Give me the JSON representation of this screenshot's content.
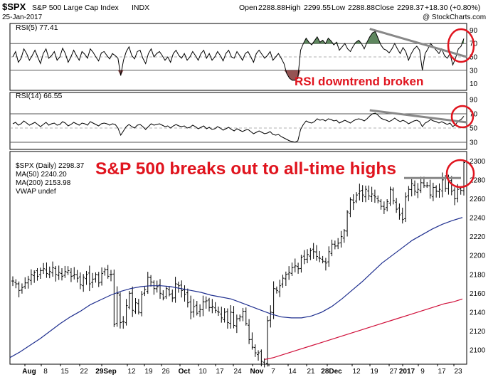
{
  "header": {
    "symbol": "$SPX",
    "name": "S&P 500 Large Cap Index",
    "exchange": "INDX",
    "date": "25-Jan-2017",
    "open_label": "Open",
    "open": "2288.88",
    "high_label": "High",
    "high": "2299.55",
    "low_label": "Low",
    "low": "2288.88",
    "close_label": "Close",
    "close": "2298.37",
    "change": "+18.30 (+0.80%)",
    "watermark": "@ StockCharts.com"
  },
  "annotations": {
    "rsi_note": "RSI downtrend broken",
    "price_note": "S&P 500 breaks out to all-time highs"
  },
  "colors": {
    "price_bars": "#000000",
    "ma50": "#1f2f8f",
    "ma200": "#d0103a",
    "overbought_fill": "#4e7a4e",
    "oversold_fill": "#8a4040",
    "annotation": "#e0141e",
    "trendline": "#888888"
  },
  "chart_data": [
    {
      "type": "line",
      "title": "RSI(5) 77.41",
      "ylim": [
        0,
        100
      ],
      "y_ticks": [
        10,
        30,
        50,
        70,
        90
      ],
      "reference_lines": [
        30,
        70
      ],
      "midline": 50,
      "series": [
        {
          "name": "RSI(5)",
          "values": [
            50,
            58,
            42,
            48,
            62,
            55,
            45,
            52,
            60,
            50,
            40,
            55,
            62,
            48,
            52,
            58,
            45,
            50,
            63,
            55,
            42,
            50,
            60,
            52,
            45,
            58,
            54,
            48,
            62,
            57,
            50,
            44,
            56,
            58,
            52,
            47,
            55,
            52,
            48,
            22,
            45,
            58,
            65,
            52,
            47,
            58,
            60,
            48,
            40,
            55,
            62,
            50,
            55,
            58,
            52,
            45,
            50,
            42,
            55,
            60,
            52,
            48,
            55,
            45,
            50,
            58,
            52,
            45,
            55,
            60,
            48,
            55,
            45,
            50,
            58,
            52,
            44,
            55,
            60,
            50,
            48,
            58,
            52,
            45,
            55,
            58,
            50,
            42,
            55,
            60,
            54,
            48,
            52,
            58,
            45,
            50,
            55,
            48,
            40,
            25,
            18,
            15,
            15,
            18,
            60,
            70,
            78,
            72,
            68,
            74,
            80,
            72,
            75,
            70,
            78,
            74,
            68,
            72,
            60,
            65,
            70,
            62,
            58,
            66,
            72,
            75,
            70,
            62,
            72,
            80,
            86,
            88,
            78,
            68,
            62,
            60,
            56,
            62,
            70,
            62,
            55,
            64,
            58,
            45,
            55,
            62,
            66,
            60,
            30,
            55,
            62,
            70,
            65,
            60,
            55,
            62,
            52,
            48,
            55,
            38,
            48,
            62,
            66,
            77.41
          ]
        }
      ],
      "ylabel": ""
    },
    {
      "type": "line",
      "title": "RSI(14) 66.55",
      "ylim": [
        20,
        100
      ],
      "y_ticks": [
        30,
        50,
        70,
        90
      ],
      "reference_lines": [
        30,
        70
      ],
      "midline": 50,
      "series": [
        {
          "name": "RSI(14)",
          "values": [
            56,
            58,
            54,
            56,
            60,
            57,
            54,
            56,
            58,
            55,
            52,
            55,
            58,
            54,
            56,
            57,
            54,
            55,
            59,
            57,
            53,
            55,
            58,
            56,
            54,
            57,
            56,
            54,
            59,
            57,
            55,
            53,
            56,
            57,
            56,
            54,
            56,
            55,
            50,
            40,
            46,
            52,
            55,
            52,
            50,
            54,
            55,
            52,
            48,
            52,
            56,
            54,
            55,
            56,
            54,
            52,
            53,
            50,
            53,
            55,
            53,
            52,
            53,
            50,
            51,
            54,
            52,
            49,
            51,
            53,
            49,
            51,
            48,
            49,
            52,
            50,
            47,
            49,
            51,
            48,
            46,
            49,
            47,
            45,
            47,
            48,
            45,
            42,
            44,
            46,
            44,
            42,
            43,
            45,
            41,
            40,
            41,
            38,
            36,
            34,
            32,
            31,
            30,
            32,
            48,
            55,
            60,
            58,
            57,
            59,
            63,
            61,
            62,
            60,
            63,
            62,
            60,
            61,
            57,
            59,
            61,
            59,
            57,
            60,
            62,
            63,
            62,
            60,
            63,
            67,
            70,
            71,
            68,
            64,
            62,
            61,
            59,
            61,
            64,
            61,
            59,
            61,
            59,
            56,
            58,
            60,
            61,
            59,
            52,
            57,
            59,
            62,
            60,
            59,
            57,
            59,
            57,
            55,
            57,
            52,
            55,
            60,
            62,
            66.55
          ]
        }
      ],
      "ylabel": ""
    },
    {
      "type": "ohlc",
      "title": "$SPX (Daily) 2298.37",
      "ylim": [
        2085,
        2310
      ],
      "y_ticks": [
        2100,
        2120,
        2140,
        2160,
        2180,
        2200,
        2220,
        2240,
        2260,
        2280,
        2300
      ],
      "x_tick_labels": [
        "Aug",
        "8",
        "15",
        "22",
        "29Sep",
        "12",
        "19",
        "26",
        "Oct",
        "10",
        "17",
        "24",
        "Nov",
        "7",
        "14",
        "21",
        "28Dec",
        "12",
        "19",
        "27",
        "2017",
        "9",
        "17",
        "23"
      ],
      "legend": [
        {
          "label": "$SPX (Daily) 2298.37"
        },
        {
          "label": "MA(50) 2240.20"
        },
        {
          "label": "MA(200) 2153.98"
        },
        {
          "label": "VWAP undef"
        }
      ],
      "breakout_level": 2282,
      "series": [
        {
          "name": "$SPX",
          "close": [
            2173,
            2170,
            2163,
            2166,
            2171,
            2175,
            2180,
            2182,
            2178,
            2184,
            2186,
            2181,
            2183,
            2187,
            2180,
            2182,
            2178,
            2183,
            2184,
            2178,
            2180,
            2176,
            2169,
            2177,
            2180,
            2170,
            2175,
            2180,
            2171,
            2181,
            2185,
            2178,
            2180,
            2127,
            2160,
            2129,
            2130,
            2147,
            2160,
            2142,
            2150,
            2140,
            2159,
            2164,
            2177,
            2172,
            2165,
            2167,
            2160,
            2155,
            2165,
            2159,
            2155,
            2170,
            2168,
            2163,
            2159,
            2150,
            2140,
            2146,
            2139,
            2143,
            2151,
            2152,
            2145,
            2146,
            2142,
            2140,
            2134,
            2140,
            2129,
            2140,
            2126,
            2133,
            2135,
            2141,
            2128,
            2111,
            2103,
            2097,
            2097,
            2088,
            2085,
            2131,
            2140,
            2165,
            2163,
            2168,
            2176,
            2180,
            2182,
            2187,
            2189,
            2186,
            2198,
            2196,
            2201,
            2205,
            2204,
            2199,
            2197,
            2194,
            2192,
            2204,
            2212,
            2210,
            2213,
            2220,
            2226,
            2246,
            2259,
            2256,
            2264,
            2268,
            2264,
            2270,
            2263,
            2265,
            2262,
            2258,
            2252,
            2249,
            2257,
            2270,
            2258,
            2249,
            2243,
            2238,
            2262,
            2270,
            2276,
            2268,
            2270,
            2277,
            2274,
            2274,
            2264,
            2272,
            2268,
            2270,
            2280,
            2271,
            2278,
            2268,
            2260,
            2270,
            2269,
            2298.37
          ]
        },
        {
          "name": "MA(50)",
          "values": [
            2092,
            2098,
            2105,
            2112,
            2120,
            2128,
            2135,
            2141,
            2148,
            2153,
            2158,
            2162,
            2165,
            2167,
            2168,
            2168,
            2167,
            2165,
            2163,
            2161,
            2158,
            2156,
            2154,
            2150,
            2146,
            2142,
            2138,
            2135,
            2134,
            2134,
            2136,
            2140,
            2146,
            2154,
            2163,
            2172,
            2182,
            2192,
            2200,
            2208,
            2216,
            2222,
            2228,
            2233,
            2237,
            2240.2
          ]
        },
        {
          "name": "MA(200)",
          "values": [
            2090,
            2092,
            2095,
            2098,
            2101,
            2104,
            2107,
            2110,
            2113,
            2116,
            2119,
            2122,
            2125,
            2128,
            2131,
            2134,
            2137,
            2140,
            2143,
            2146,
            2149,
            2151,
            2153.98
          ]
        }
      ]
    }
  ]
}
